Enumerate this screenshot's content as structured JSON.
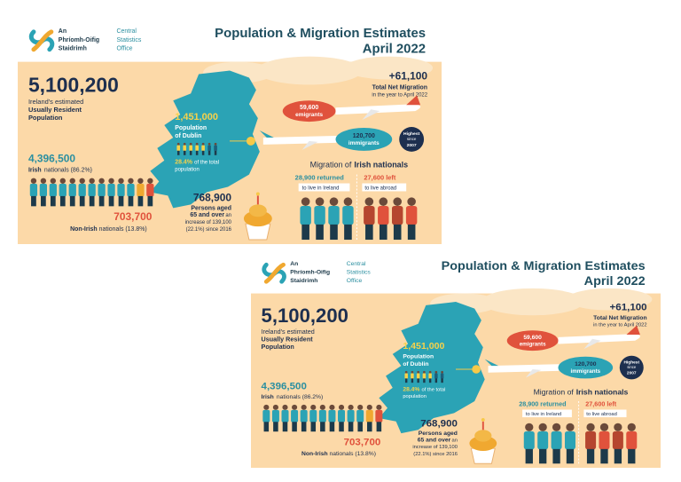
{
  "logo": {
    "irish": [
      "An",
      "Phríomh-Oifig",
      "Staidrimh"
    ],
    "english": [
      "Central",
      "Statistics",
      "Office"
    ]
  },
  "title": [
    "Population & Migration Estimates",
    "April 2022"
  ],
  "population": {
    "value": "5,100,200",
    "label": [
      "Ireland's estimated",
      "Usually Resident",
      "Population"
    ]
  },
  "irish_nationals": {
    "value": "4,396,500",
    "bold": "Irish",
    "label": "nationals (86.2%)"
  },
  "non_irish_nationals": {
    "value": "703,700",
    "bold": "Non-Irish",
    "label": "nationals (13.8%)"
  },
  "dublin": {
    "value": "1,451,000",
    "label": [
      "Population",
      "of Dublin"
    ],
    "share": "28.4%",
    "share_label": [
      "of the total",
      "population"
    ]
  },
  "older": {
    "value": "768,900",
    "label": [
      "Persons aged",
      "65 and over"
    ],
    "note": [
      "an",
      "increase of 139,100",
      "(22.1%) since 2016"
    ]
  },
  "net_migration": {
    "value": "+61,100",
    "label": "Total Net Migration",
    "note": "in the year to April 2022"
  },
  "emigrants": {
    "value": "59,600",
    "label": "emigrants"
  },
  "immigrants": {
    "value": "120,700",
    "label": "immigrants"
  },
  "highest": [
    "Highest",
    "since",
    "2007"
  ],
  "irish_migration": {
    "title_plain": "Migration of",
    "title_bold": "Irish nationals",
    "returned": {
      "value": "28,900 returned",
      "label": "to live in Ireland"
    },
    "left": {
      "value": "27,600 left",
      "label": "to live abroad"
    }
  }
}
